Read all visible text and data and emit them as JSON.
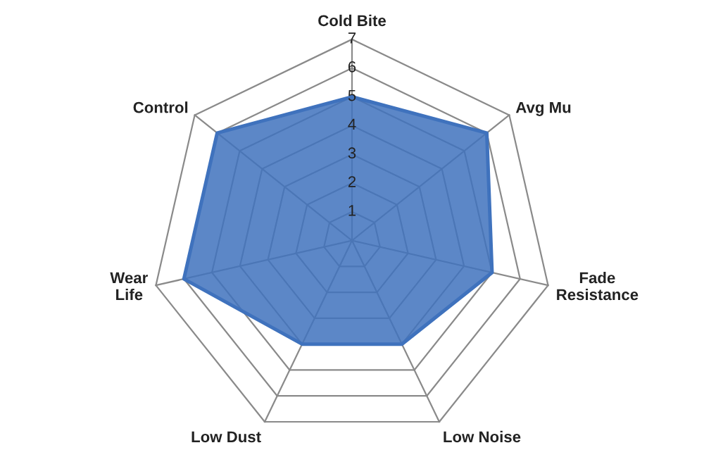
{
  "chart_data": {
    "type": "radar",
    "categories": [
      "Cold Bite",
      "Avg Mu",
      "Fade\nResistance",
      "Low Noise",
      "Low Dust",
      "Wear\nLife",
      "Control"
    ],
    "series": [
      {
        "color": "#3f72bd",
        "values": [
          5,
          6,
          5,
          4,
          4,
          6,
          6
        ]
      }
    ],
    "ylim": [
      0,
      7
    ],
    "yticks": [
      1,
      2,
      3,
      4,
      5,
      6,
      7
    ],
    "grid": true,
    "legend": false
  }
}
